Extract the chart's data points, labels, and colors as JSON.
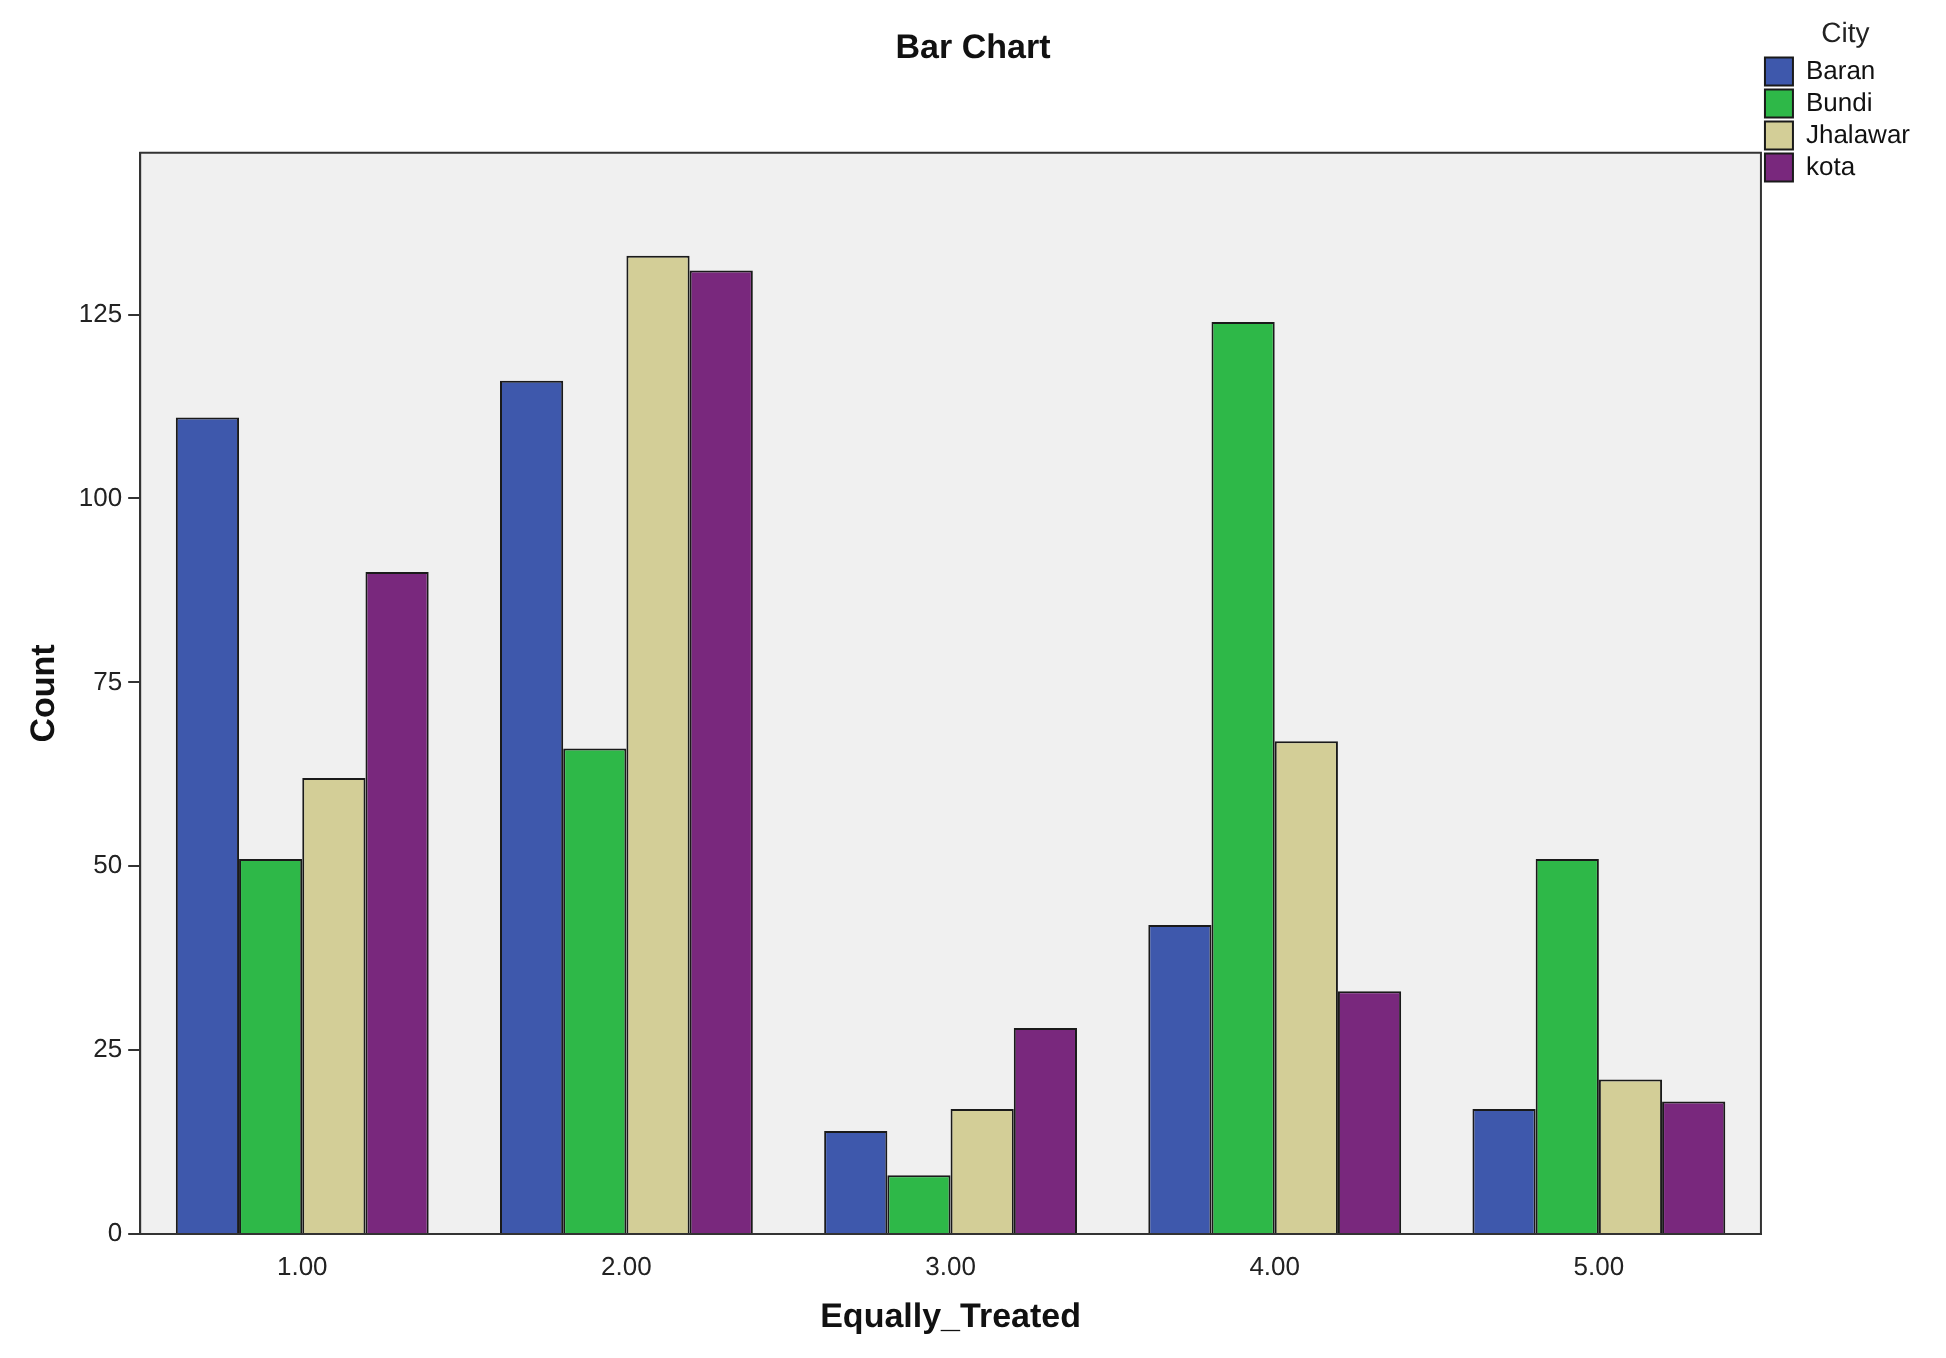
{
  "chart_data": {
    "type": "bar",
    "title": "Bar Chart",
    "xlabel": "Equally_Treated",
    "ylabel": "Count",
    "legend_title": "City",
    "categories": [
      "1.00",
      "2.00",
      "3.00",
      "4.00",
      "5.00"
    ],
    "series": [
      {
        "name": "Baran",
        "color": "#3e58ac",
        "values": [
          111,
          116,
          14,
          42,
          17
        ]
      },
      {
        "name": "Bundi",
        "color": "#2eb848",
        "values": [
          51,
          66,
          8,
          124,
          51
        ]
      },
      {
        "name": "Jhalawar",
        "color": "#d3ce97",
        "values": [
          62,
          133,
          17,
          67,
          21
        ]
      },
      {
        "name": "kota",
        "color": "#79287d",
        "values": [
          90,
          131,
          28,
          33,
          18
        ]
      }
    ],
    "ylim": [
      0,
      147
    ],
    "yticks": [
      0,
      25,
      50,
      75,
      100,
      125
    ],
    "grid": false,
    "legend": "top right"
  }
}
